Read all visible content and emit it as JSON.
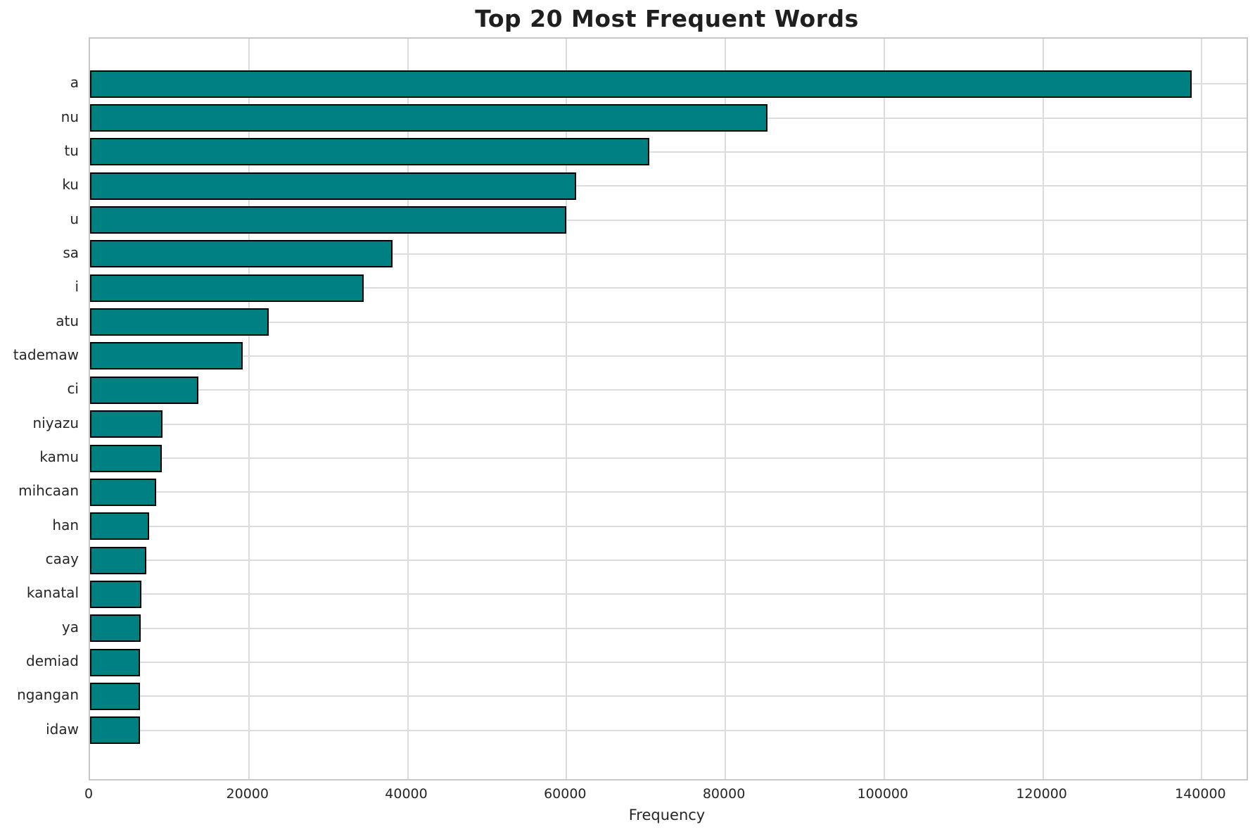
{
  "chart_data": {
    "type": "bar",
    "orientation": "horizontal",
    "title": "Top 20 Most Frequent Words",
    "xlabel": "Frequency",
    "ylabel": "",
    "categories": [
      "a",
      "nu",
      "tu",
      "ku",
      "u",
      "sa",
      "i",
      "atu",
      "tademaw",
      "ci",
      "niyazu",
      "kamu",
      "mihcaan",
      "han",
      "caay",
      "kanatal",
      "ya",
      "demiad",
      "ngangan",
      "idaw"
    ],
    "values": [
      138700,
      85300,
      70400,
      61200,
      60000,
      38100,
      34500,
      22500,
      19200,
      13600,
      9100,
      9050,
      8300,
      7400,
      7100,
      6450,
      6400,
      6300,
      6280,
      6250
    ],
    "xticks": [
      0,
      20000,
      40000,
      60000,
      80000,
      100000,
      120000,
      140000
    ],
    "xlim": [
      0,
      145635
    ],
    "grid": true,
    "legend": false,
    "bar_color": "#008080",
    "bar_edge_color": "#000000",
    "grid_color": "#dcdcdc",
    "spine_color": "#c8c8c8",
    "text_color": "#262626",
    "background_color": "#ffffff"
  }
}
